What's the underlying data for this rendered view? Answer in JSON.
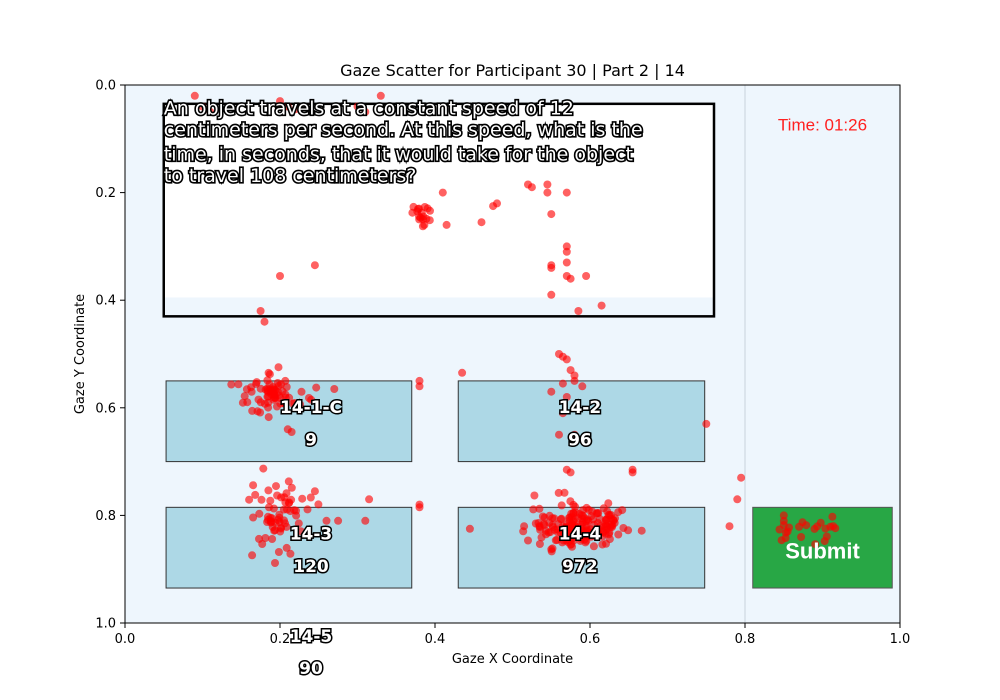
{
  "chart_data": {
    "type": "scatter",
    "title": "Gaze Scatter for Participant 30 | Part 2 | 14",
    "xlabel": "Gaze X Coordinate",
    "ylabel": "Gaze Y Coordinate",
    "xlim": [
      0.0,
      1.0
    ],
    "ylim": [
      1.0,
      0.0
    ],
    "xticks": [
      "0.0",
      "0.2",
      "0.4",
      "0.6",
      "0.8",
      "1.0"
    ],
    "yticks": [
      "0.0",
      "0.2",
      "0.4",
      "0.6",
      "0.8",
      "1.0"
    ],
    "background_color": "#eef6fd",
    "point_color": "#ff0000",
    "stimulus": {
      "question_lines": [
        "An object travels at a constant speed of 12",
        "centimeters per second. At this speed, what is the",
        "time, in seconds, that it would take for the object",
        "to travel 108 centimeters?"
      ],
      "timer": "Time: 01:26",
      "submit_label": "Submit",
      "option_fill": "#add8e6",
      "submit_fill": "#28a745",
      "options": [
        {
          "id": "14-1-C",
          "value": "9"
        },
        {
          "id": "14-2",
          "value": "96"
        },
        {
          "id": "14-3",
          "value": "120"
        },
        {
          "id": "14-4",
          "value": "972"
        },
        {
          "id": "14-5",
          "value": "90"
        }
      ]
    },
    "clusters": [
      {
        "cx": 0.19,
        "cy": 0.575,
        "sx": 0.02,
        "sy": 0.02,
        "n": 70
      },
      {
        "cx": 0.2,
        "cy": 0.81,
        "sx": 0.018,
        "sy": 0.035,
        "n": 65
      },
      {
        "cx": 0.585,
        "cy": 0.82,
        "sx": 0.03,
        "sy": 0.02,
        "n": 190
      },
      {
        "cx": 0.88,
        "cy": 0.825,
        "sx": 0.02,
        "sy": 0.012,
        "n": 22
      },
      {
        "cx": 0.385,
        "cy": 0.235,
        "sx": 0.008,
        "sy": 0.015,
        "n": 18
      }
    ],
    "points": [
      [
        0.1,
        0.04
      ],
      [
        0.11,
        0.05
      ],
      [
        0.21,
        0.04
      ],
      [
        0.22,
        0.045
      ],
      [
        0.3,
        0.04
      ],
      [
        0.31,
        0.05
      ],
      [
        0.33,
        0.02
      ],
      [
        0.09,
        0.02
      ],
      [
        0.2,
        0.03
      ],
      [
        0.48,
        0.22
      ],
      [
        0.475,
        0.225
      ],
      [
        0.52,
        0.185
      ],
      [
        0.525,
        0.19
      ],
      [
        0.545,
        0.185
      ],
      [
        0.545,
        0.2
      ],
      [
        0.57,
        0.2
      ],
      [
        0.46,
        0.255
      ],
      [
        0.41,
        0.2
      ],
      [
        0.415,
        0.26
      ],
      [
        0.55,
        0.24
      ],
      [
        0.57,
        0.3
      ],
      [
        0.57,
        0.31
      ],
      [
        0.57,
        0.33
      ],
      [
        0.55,
        0.335
      ],
      [
        0.55,
        0.34
      ],
      [
        0.57,
        0.355
      ],
      [
        0.575,
        0.36
      ],
      [
        0.595,
        0.355
      ],
      [
        0.55,
        0.39
      ],
      [
        0.585,
        0.42
      ],
      [
        0.615,
        0.41
      ],
      [
        0.2,
        0.355
      ],
      [
        0.245,
        0.335
      ],
      [
        0.175,
        0.42
      ],
      [
        0.18,
        0.44
      ],
      [
        0.56,
        0.5
      ],
      [
        0.565,
        0.505
      ],
      [
        0.57,
        0.51
      ],
      [
        0.575,
        0.53
      ],
      [
        0.58,
        0.54
      ],
      [
        0.58,
        0.55
      ],
      [
        0.565,
        0.555
      ],
      [
        0.59,
        0.56
      ],
      [
        0.55,
        0.57
      ],
      [
        0.57,
        0.58
      ],
      [
        0.58,
        0.6
      ],
      [
        0.565,
        0.61
      ],
      [
        0.56,
        0.65
      ],
      [
        0.58,
        0.65
      ],
      [
        0.38,
        0.55
      ],
      [
        0.38,
        0.56
      ],
      [
        0.435,
        0.535
      ],
      [
        0.27,
        0.565
      ],
      [
        0.21,
        0.64
      ],
      [
        0.215,
        0.645
      ],
      [
        0.75,
        0.63
      ],
      [
        0.57,
        0.715
      ],
      [
        0.575,
        0.72
      ],
      [
        0.655,
        0.715
      ],
      [
        0.655,
        0.72
      ],
      [
        0.795,
        0.73
      ],
      [
        0.79,
        0.77
      ],
      [
        0.315,
        0.77
      ],
      [
        0.31,
        0.81
      ],
      [
        0.38,
        0.78
      ],
      [
        0.38,
        0.785
      ],
      [
        0.445,
        0.825
      ],
      [
        0.515,
        0.82
      ],
      [
        0.53,
        0.815
      ],
      [
        0.78,
        0.82
      ],
      [
        0.85,
        0.8
      ],
      [
        0.855,
        0.83
      ],
      [
        0.26,
        0.81
      ],
      [
        0.275,
        0.81
      ],
      [
        0.245,
        0.755
      ],
      [
        0.57,
        0.89
      ],
      [
        0.57,
        0.9
      ]
    ]
  }
}
